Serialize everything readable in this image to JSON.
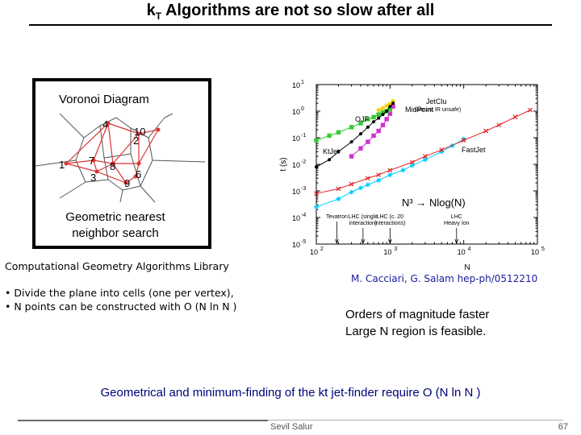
{
  "slide": {
    "title_prefix": "k",
    "title_sub": "T",
    "title_rest": " Algorithms are not so slow after all",
    "voronoi_title": "Voronoi Diagram",
    "voronoi_caption": "Geometric nearest neighbor search",
    "voronoi_labels": [
      "1",
      "2",
      "3",
      "4",
      "6",
      "7",
      "8",
      "9",
      "10"
    ],
    "cgal": "Computational Geometry Algorithms Library",
    "bullets": [
      "• Divide the plane into cells (one per vertex),",
      "• N points can be constructed with  O (N ln N )"
    ],
    "citation": "M. Cacciari, G. Salam hep-ph/0512210",
    "claims": [
      "Orders of magnitude faster",
      "Large N region is feasible."
    ],
    "conclusion": "Geometrical and minimum-finding of the kt jet-finder require O (N ln N )",
    "author": "Sevil Salur",
    "page": "67"
  },
  "chart_data": {
    "type": "scatter",
    "x_scale": "log",
    "y_scale": "log",
    "xlim": [
      100,
      100000
    ],
    "ylim": [
      1e-05,
      10
    ],
    "xlabel": "N",
    "ylabel": "t (s)",
    "x_ticks": [
      "10",
      "10",
      "10",
      "10"
    ],
    "x_tick_exps": [
      "2",
      "3",
      "4",
      "5"
    ],
    "y_ticks": [
      "10",
      "10",
      "10",
      "10",
      "10",
      "10",
      "10"
    ],
    "y_tick_exps": [
      "1",
      "0",
      "-1",
      "-2",
      "-3",
      "-4",
      "-5"
    ],
    "overlay_label": "N³ → Nlog(N)",
    "annotations": [
      {
        "lines": [
          "Tevatron"
        ],
        "x": 190
      },
      {
        "lines": [
          "LHC (single",
          "interaction)"
        ],
        "x": 430
      },
      {
        "lines": [
          "LHC (c. 20",
          "interactions)"
        ],
        "x": 1000
      },
      {
        "lines": [
          "LHC",
          "Heavy Ion"
        ],
        "x": 8000
      }
    ],
    "series": [
      {
        "name": "JetClu",
        "sublabel": "(almost IR unsafe)",
        "color": "#f0d000",
        "marker": "star",
        "x": [
          700,
          800,
          900,
          1000,
          1100
        ],
        "y": [
          1.1,
          1.3,
          1.6,
          1.9,
          2.4
        ]
      },
      {
        "name": "MidPoint",
        "color": "#cc33cc",
        "marker": "square",
        "x": [
          300,
          400,
          500,
          600,
          700,
          800,
          900,
          1000,
          1100
        ],
        "y": [
          0.02,
          0.04,
          0.07,
          0.12,
          0.18,
          0.3,
          0.5,
          0.8,
          1.5
        ]
      },
      {
        "name": "OJF",
        "color": "#33cc33",
        "marker": "square",
        "x": [
          100,
          150,
          200,
          300,
          400,
          500,
          600,
          700,
          800,
          900,
          1000
        ],
        "y": [
          0.08,
          0.12,
          0.16,
          0.25,
          0.35,
          0.5,
          0.6,
          0.75,
          0.9,
          1.0,
          1.2
        ]
      },
      {
        "name": "KtJet",
        "color": "#000000",
        "marker": "circle",
        "x": [
          100,
          150,
          200,
          300,
          400,
          500,
          600,
          700,
          800,
          900,
          1000,
          1100
        ],
        "y": [
          0.008,
          0.015,
          0.03,
          0.07,
          0.14,
          0.25,
          0.4,
          0.55,
          0.75,
          1.0,
          1.5,
          2.0
        ]
      },
      {
        "name": "",
        "color": "#00d0ff",
        "marker": "star",
        "x": [
          100,
          200,
          300,
          400,
          500,
          700,
          1000,
          1500,
          2000,
          3000,
          5000,
          7000,
          10000
        ],
        "y": [
          0.00025,
          0.0005,
          0.0009,
          0.0013,
          0.0017,
          0.0025,
          0.004,
          0.006,
          0.009,
          0.015,
          0.03,
          0.05,
          0.09
        ]
      },
      {
        "name": "FastJet",
        "color": "#e02020",
        "marker": "cross",
        "x": [
          100,
          200,
          300,
          500,
          700,
          1000,
          2000,
          3000,
          5000,
          10000,
          20000,
          30000,
          50000,
          80000
        ],
        "y": [
          0.0008,
          0.0012,
          0.0018,
          0.003,
          0.004,
          0.006,
          0.012,
          0.02,
          0.035,
          0.08,
          0.18,
          0.3,
          0.6,
          1.1
        ]
      }
    ]
  }
}
